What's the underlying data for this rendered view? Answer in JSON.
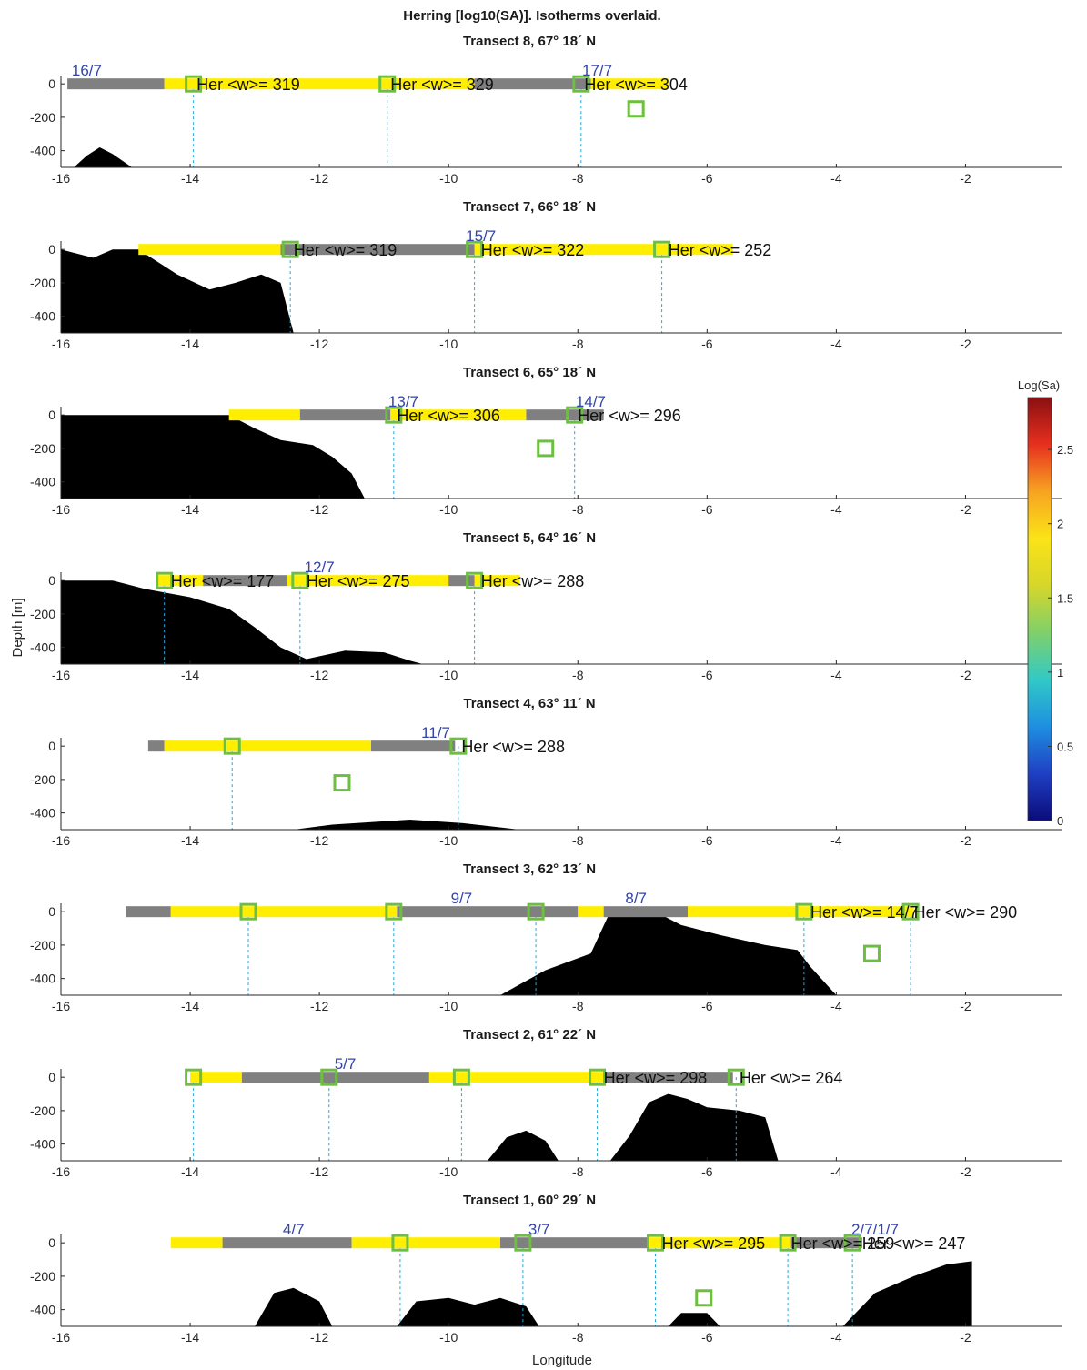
{
  "figure": {
    "title": "Herring [log10(SA)]. Isotherms overlaid.",
    "xlabel": "Longitude",
    "ylabel": "Depth [m]"
  },
  "colorbar": {
    "label": "Log(Sa)",
    "ticks": [
      0,
      0.5,
      1,
      1.5,
      2,
      2.5
    ],
    "range": [
      0,
      2.85
    ],
    "colors": [
      "#0b0c7a",
      "#1f3fc4",
      "#1e8fe0",
      "#31c9c6",
      "#7fd06a",
      "#d6d62a",
      "#fbe317",
      "#f7a321",
      "#e6301e",
      "#8c0f12"
    ]
  },
  "colors": {
    "bottom": "#000000",
    "yellow": "#ffee00",
    "gray": "#808080",
    "station": "#6cbf3f",
    "dash": "#2fa3d6",
    "date": "#3344aa"
  },
  "chart_data": [
    {
      "type": "section",
      "title": "Transect 8, 67° 18´ N",
      "xlim": [
        -16,
        -0.5
      ],
      "ylim": [
        -500,
        50
      ],
      "xticks": [
        -16,
        -14,
        -12,
        -10,
        -8,
        -6,
        -4,
        -2
      ],
      "yticks": [
        0,
        -200,
        -400
      ],
      "track": [
        {
          "from": -15.9,
          "to": -14.4,
          "c": "gray"
        },
        {
          "from": -14.4,
          "to": -9.6,
          "c": "yellow"
        },
        {
          "from": -9.6,
          "to": -7.8,
          "c": "gray"
        },
        {
          "from": -7.8,
          "to": -6.6,
          "c": "yellow"
        }
      ],
      "stations": [
        {
          "x": -13.95,
          "y": 0,
          "line": true
        },
        {
          "x": -10.95,
          "y": 0,
          "line": true
        },
        {
          "x": -7.95,
          "y": 0,
          "line": true
        },
        {
          "x": -7.1,
          "y": -150,
          "line": false
        }
      ],
      "dates": [
        {
          "x": -15.6,
          "text": "16/7"
        },
        {
          "x": -7.7,
          "text": "17/7"
        }
      ],
      "her": [
        {
          "x": -13.9,
          "text": "Her <w>= 319"
        },
        {
          "x": -10.9,
          "text": "Her <w>= 329"
        },
        {
          "x": -7.9,
          "text": "Her <w>= 304"
        }
      ],
      "bottom": [
        [
          -15.8,
          -500
        ],
        [
          -15.6,
          -430
        ],
        [
          -15.4,
          -380
        ],
        [
          -15.2,
          -420
        ],
        [
          -14.9,
          -500
        ]
      ]
    },
    {
      "type": "section",
      "title": "Transect 7, 66° 18´ N",
      "xlim": [
        -16,
        -0.5
      ],
      "ylim": [
        -500,
        50
      ],
      "xticks": [
        -16,
        -14,
        -12,
        -10,
        -8,
        -6,
        -4,
        -2
      ],
      "yticks": [
        0,
        -200,
        -400
      ],
      "track": [
        {
          "from": -14.8,
          "to": -12.6,
          "c": "yellow"
        },
        {
          "from": -12.6,
          "to": -9.6,
          "c": "gray"
        },
        {
          "from": -9.6,
          "to": -5.6,
          "c": "yellow"
        }
      ],
      "stations": [
        {
          "x": -12.45,
          "y": 0,
          "line": true
        },
        {
          "x": -9.6,
          "y": 0,
          "line": true
        },
        {
          "x": -6.7,
          "y": 0,
          "line": true
        }
      ],
      "dates": [
        {
          "x": -9.5,
          "text": "15/7"
        }
      ],
      "her": [
        {
          "x": -12.4,
          "text": "Her <w>= 319"
        },
        {
          "x": -9.5,
          "text": "Her <w>= 322"
        },
        {
          "x": -6.6,
          "text": "Her <w>= 252"
        }
      ],
      "bottom": [
        [
          -16,
          -500
        ],
        [
          -16,
          0
        ],
        [
          -15.5,
          -50
        ],
        [
          -15.2,
          0
        ],
        [
          -14.8,
          0
        ],
        [
          -14.2,
          -150
        ],
        [
          -13.7,
          -240
        ],
        [
          -13.3,
          -200
        ],
        [
          -12.9,
          -150
        ],
        [
          -12.6,
          -200
        ],
        [
          -12.4,
          -500
        ]
      ]
    },
    {
      "type": "section",
      "title": "Transect 6, 65° 18´ N",
      "xlim": [
        -16,
        -0.5
      ],
      "ylim": [
        -500,
        50
      ],
      "xticks": [
        -16,
        -14,
        -12,
        -10,
        -8,
        -6,
        -4,
        -2
      ],
      "yticks": [
        0,
        -200,
        -400
      ],
      "track": [
        {
          "from": -13.4,
          "to": -12.3,
          "c": "yellow"
        },
        {
          "from": -12.3,
          "to": -10.9,
          "c": "gray"
        },
        {
          "from": -10.9,
          "to": -8.8,
          "c": "yellow"
        },
        {
          "from": -8.8,
          "to": -7.6,
          "c": "gray"
        }
      ],
      "stations": [
        {
          "x": -10.85,
          "y": 0,
          "line": true
        },
        {
          "x": -8.05,
          "y": 0,
          "line": true
        },
        {
          "x": -8.5,
          "y": -200,
          "line": false
        }
      ],
      "dates": [
        {
          "x": -10.7,
          "text": "13/7"
        },
        {
          "x": -7.8,
          "text": "14/7"
        }
      ],
      "her": [
        {
          "x": -10.8,
          "text": "Her <w>= 306"
        },
        {
          "x": -8.0,
          "text": "Her <w>= 296"
        }
      ],
      "bottom": [
        [
          -16,
          -500
        ],
        [
          -16,
          0
        ],
        [
          -13.4,
          0
        ],
        [
          -13,
          -80
        ],
        [
          -12.6,
          -150
        ],
        [
          -12.1,
          -180
        ],
        [
          -11.8,
          -250
        ],
        [
          -11.5,
          -350
        ],
        [
          -11.3,
          -500
        ]
      ]
    },
    {
      "type": "section",
      "title": "Transect 5, 64° 16´ N",
      "xlim": [
        -16,
        -0.5
      ],
      "ylim": [
        -500,
        50
      ],
      "xticks": [
        -16,
        -14,
        -12,
        -10,
        -8,
        -6,
        -4,
        -2
      ],
      "yticks": [
        0,
        -200,
        -400
      ],
      "track": [
        {
          "from": -14.5,
          "to": -13.8,
          "c": "yellow"
        },
        {
          "from": -13.8,
          "to": -12.5,
          "c": "gray"
        },
        {
          "from": -12.5,
          "to": -10.0,
          "c": "yellow"
        },
        {
          "from": -10.0,
          "to": -9.6,
          "c": "gray"
        },
        {
          "from": -9.6,
          "to": -8.9,
          "c": "yellow"
        }
      ],
      "stations": [
        {
          "x": -14.4,
          "y": 0,
          "line": true
        },
        {
          "x": -12.3,
          "y": 0,
          "line": true
        },
        {
          "x": -9.6,
          "y": 0,
          "line": true
        }
      ],
      "dates": [
        {
          "x": -12.0,
          "text": "12/7"
        }
      ],
      "her": [
        {
          "x": -14.3,
          "text": "Her <w>= 177"
        },
        {
          "x": -12.2,
          "text": "Her <w>= 275"
        },
        {
          "x": -9.5,
          "text": "Her <w>= 288"
        }
      ],
      "bottom": [
        [
          -16,
          -500
        ],
        [
          -16,
          0
        ],
        [
          -15.2,
          0
        ],
        [
          -14.7,
          -50
        ],
        [
          -14,
          -100
        ],
        [
          -13.4,
          -170
        ],
        [
          -13,
          -280
        ],
        [
          -12.6,
          -400
        ],
        [
          -12.2,
          -470
        ],
        [
          -11.6,
          -420
        ],
        [
          -11.0,
          -430
        ],
        [
          -10.6,
          -480
        ],
        [
          -10.4,
          -500
        ]
      ]
    },
    {
      "type": "section",
      "title": "Transect 4, 63° 11´ N",
      "xlim": [
        -16,
        -0.5
      ],
      "ylim": [
        -500,
        50
      ],
      "xticks": [
        -16,
        -14,
        -12,
        -10,
        -8,
        -6,
        -4,
        -2
      ],
      "yticks": [
        0,
        -200,
        -400
      ],
      "track": [
        {
          "from": -14.65,
          "to": -14.4,
          "c": "gray"
        },
        {
          "from": -14.4,
          "to": -11.2,
          "c": "yellow"
        },
        {
          "from": -11.2,
          "to": -9.9,
          "c": "gray"
        }
      ],
      "stations": [
        {
          "x": -13.35,
          "y": 0,
          "line": true
        },
        {
          "x": -9.85,
          "y": 0,
          "line": true
        },
        {
          "x": -11.65,
          "y": -220,
          "line": false
        }
      ],
      "dates": [
        {
          "x": -10.2,
          "text": "11/7"
        }
      ],
      "her": [
        {
          "x": -9.8,
          "text": "Her <w>= 288"
        }
      ],
      "bottom": [
        [
          -12.4,
          -500
        ],
        [
          -11.8,
          -470
        ],
        [
          -10.6,
          -440
        ],
        [
          -9.8,
          -460
        ],
        [
          -8.9,
          -500
        ]
      ]
    },
    {
      "type": "section",
      "title": "Transect 3, 62° 13´ N",
      "xlim": [
        -16,
        -0.5
      ],
      "ylim": [
        -500,
        50
      ],
      "xticks": [
        -16,
        -14,
        -12,
        -10,
        -8,
        -6,
        -4,
        -2
      ],
      "yticks": [
        0,
        -200,
        -400
      ],
      "track": [
        {
          "from": -15.0,
          "to": -14.3,
          "c": "gray"
        },
        {
          "from": -14.3,
          "to": -10.8,
          "c": "yellow"
        },
        {
          "from": -10.8,
          "to": -8.0,
          "c": "gray"
        },
        {
          "from": -8.0,
          "to": -7.6,
          "c": "yellow"
        },
        {
          "from": -7.6,
          "to": -6.3,
          "c": "gray"
        },
        {
          "from": -6.3,
          "to": -2.8,
          "c": "yellow"
        }
      ],
      "stations": [
        {
          "x": -13.1,
          "y": 0,
          "line": true
        },
        {
          "x": -10.85,
          "y": 0,
          "line": true
        },
        {
          "x": -8.65,
          "y": 0,
          "line": true
        },
        {
          "x": -4.5,
          "y": 0,
          "line": true
        },
        {
          "x": -2.85,
          "y": 0,
          "line": true
        },
        {
          "x": -3.45,
          "y": -250,
          "line": false
        }
      ],
      "dates": [
        {
          "x": -9.8,
          "text": "9/7"
        },
        {
          "x": -7.1,
          "text": "8/7"
        }
      ],
      "her": [
        {
          "x": -4.4,
          "text": "Her <w>= 14/7"
        },
        {
          "x": -2.8,
          "text": "Her <w>= 290"
        }
      ],
      "bottom": [
        [
          -9.2,
          -500
        ],
        [
          -8.5,
          -350
        ],
        [
          -7.8,
          -250
        ],
        [
          -7.5,
          0
        ],
        [
          -6.8,
          0
        ],
        [
          -6.4,
          -80
        ],
        [
          -5.8,
          -140
        ],
        [
          -5.1,
          -200
        ],
        [
          -4.6,
          -230
        ],
        [
          -4.4,
          -330
        ],
        [
          -4.0,
          -500
        ]
      ]
    },
    {
      "type": "section",
      "title": "Transect 2, 61° 22´ N",
      "xlim": [
        -16,
        -0.5
      ],
      "ylim": [
        -500,
        50
      ],
      "xticks": [
        -16,
        -14,
        -12,
        -10,
        -8,
        -6,
        -4,
        -2
      ],
      "yticks": [
        0,
        -200,
        -400
      ],
      "track": [
        {
          "from": -14.0,
          "to": -13.2,
          "c": "yellow"
        },
        {
          "from": -13.2,
          "to": -10.3,
          "c": "gray"
        },
        {
          "from": -10.3,
          "to": -7.6,
          "c": "yellow"
        },
        {
          "from": -7.6,
          "to": -5.6,
          "c": "gray"
        }
      ],
      "stations": [
        {
          "x": -13.95,
          "y": 0,
          "line": true
        },
        {
          "x": -11.85,
          "y": 0,
          "line": true
        },
        {
          "x": -9.8,
          "y": 0,
          "line": true
        },
        {
          "x": -7.7,
          "y": 0,
          "line": true
        },
        {
          "x": -5.55,
          "y": 0,
          "line": true
        }
      ],
      "dates": [
        {
          "x": -11.6,
          "text": "5/7"
        }
      ],
      "her": [
        {
          "x": -7.6,
          "text": "Her <w>= 298"
        },
        {
          "x": -5.5,
          "text": "Her <w>= 264"
        }
      ],
      "bottom": [
        [
          -9.4,
          -500
        ],
        [
          -9.1,
          -360
        ],
        [
          -8.8,
          -320
        ],
        [
          -8.5,
          -380
        ],
        [
          -8.3,
          -500
        ],
        [
          -7.5,
          -500
        ],
        [
          -7.2,
          -350
        ],
        [
          -6.9,
          -150
        ],
        [
          -6.6,
          -100
        ],
        [
          -6.3,
          -130
        ],
        [
          -6.0,
          -180
        ],
        [
          -5.5,
          -200
        ],
        [
          -5.1,
          -240
        ],
        [
          -4.9,
          -500
        ]
      ]
    },
    {
      "type": "section",
      "title": "Transect 1, 60° 29´ N",
      "xlim": [
        -16,
        -0.5
      ],
      "ylim": [
        -500,
        50
      ],
      "xticks": [
        -16,
        -14,
        -12,
        -10,
        -8,
        -6,
        -4,
        -2
      ],
      "yticks": [
        0,
        -200,
        -400
      ],
      "track": [
        {
          "from": -14.3,
          "to": -13.5,
          "c": "yellow"
        },
        {
          "from": -13.5,
          "to": -11.5,
          "c": "gray"
        },
        {
          "from": -11.5,
          "to": -9.2,
          "c": "yellow"
        },
        {
          "from": -9.2,
          "to": -6.9,
          "c": "gray"
        },
        {
          "from": -6.9,
          "to": -4.7,
          "c": "yellow"
        },
        {
          "from": -4.7,
          "to": -3.6,
          "c": "gray"
        }
      ],
      "stations": [
        {
          "x": -10.75,
          "y": 0,
          "line": true
        },
        {
          "x": -8.85,
          "y": 0,
          "line": true
        },
        {
          "x": -6.8,
          "y": 0,
          "line": true
        },
        {
          "x": -4.75,
          "y": 0,
          "line": true
        },
        {
          "x": -3.75,
          "y": 0,
          "line": true
        },
        {
          "x": -6.05,
          "y": -330,
          "line": false
        }
      ],
      "dates": [
        {
          "x": -12.4,
          "text": "4/7"
        },
        {
          "x": -8.6,
          "text": "3/7"
        },
        {
          "x": -3.4,
          "text": "2/7/1/7"
        }
      ],
      "her": [
        {
          "x": -6.7,
          "text": "Her <w>= 295"
        },
        {
          "x": -4.7,
          "text": "Her <w>= 259"
        },
        {
          "x": -3.6,
          "text": "Her <w>= 247"
        }
      ],
      "bottom": [
        [
          -13.0,
          -500
        ],
        [
          -12.7,
          -300
        ],
        [
          -12.4,
          -270
        ],
        [
          -12.0,
          -350
        ],
        [
          -11.8,
          -500
        ],
        [
          -10.8,
          -500
        ],
        [
          -10.5,
          -350
        ],
        [
          -10.0,
          -330
        ],
        [
          -9.6,
          -370
        ],
        [
          -9.2,
          -330
        ],
        [
          -8.8,
          -380
        ],
        [
          -8.6,
          -500
        ],
        [
          -6.6,
          -500
        ],
        [
          -6.4,
          -420
        ],
        [
          -6.0,
          -420
        ],
        [
          -5.8,
          -500
        ],
        [
          -3.9,
          -500
        ],
        [
          -3.4,
          -300
        ],
        [
          -2.8,
          -200
        ],
        [
          -2.3,
          -130
        ],
        [
          -1.9,
          -110
        ],
        [
          -1.9,
          -500
        ]
      ]
    }
  ]
}
